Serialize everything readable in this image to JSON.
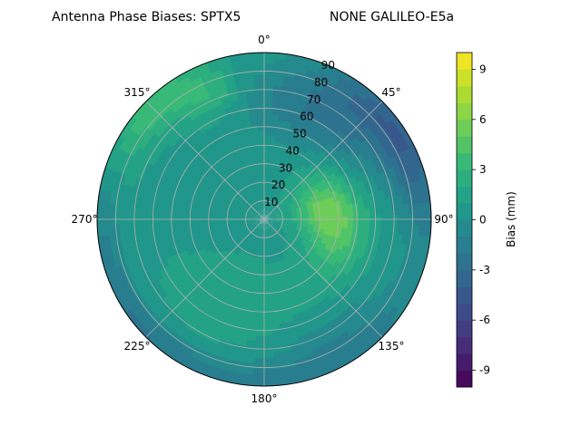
{
  "chart_data": {
    "type": "polar-contour",
    "title_left": "Antenna Phase Biases: SPTX5",
    "title_right": "NONE GALILEO-E5a",
    "colorbar_label": "Bias (mm)",
    "colormap": "viridis",
    "value_range": [
      -10,
      10
    ],
    "levels": [
      -10,
      -9,
      -8,
      -7,
      -6,
      -5,
      -4,
      -3,
      -2,
      -1,
      0,
      1,
      2,
      3,
      4,
      5,
      6,
      7,
      8,
      9,
      10
    ],
    "colorbar_ticks": [
      "-9",
      "-6",
      "-3",
      "0",
      "3",
      "6",
      "9"
    ],
    "colorbar_tick_values": [
      -9,
      -6,
      -3,
      0,
      3,
      6,
      9
    ],
    "azimuth_ticks": [
      "0°",
      "45°",
      "90°",
      "135°",
      "180°",
      "225°",
      "270°",
      "315°"
    ],
    "azimuth_tick_values": [
      0,
      45,
      90,
      135,
      180,
      225,
      270,
      315
    ],
    "radial_ticks": [
      "10",
      "20",
      "30",
      "40",
      "50",
      "60",
      "70",
      "80",
      "90"
    ],
    "radial_tick_values": [
      10,
      20,
      30,
      40,
      50,
      60,
      70,
      80,
      90
    ],
    "radial_range": [
      0,
      90
    ],
    "azimuth_zero": "north",
    "azimuth_direction": "clockwise",
    "grid": true,
    "base_bias": 0.8,
    "features": [
      {
        "azimuth": 95,
        "zenith": 40,
        "bias": 4.0,
        "az_width": 38,
        "zen_width": 16
      },
      {
        "azimuth": 75,
        "zenith": 28,
        "bias": 2.5,
        "az_width": 30,
        "zen_width": 14
      },
      {
        "azimuth": 30,
        "zenith": 65,
        "bias": -3.0,
        "az_width": 38,
        "zen_width": 22
      },
      {
        "azimuth": 60,
        "zenith": 85,
        "bias": -4.0,
        "az_width": 30,
        "zen_width": 14
      },
      {
        "azimuth": 315,
        "zenith": 85,
        "bias": 3.0,
        "az_width": 25,
        "zen_width": 12
      },
      {
        "azimuth": 335,
        "zenith": 72,
        "bias": 2.0,
        "az_width": 15,
        "zen_width": 12
      },
      {
        "azimuth": 180,
        "zenith": 88,
        "bias": -2.0,
        "az_width": 90,
        "zen_width": 10
      },
      {
        "azimuth": 240,
        "zenith": 88,
        "bias": -1.5,
        "az_width": 40,
        "zen_width": 10
      },
      {
        "azimuth": 150,
        "zenith": 75,
        "bias": -1.5,
        "az_width": 30,
        "zen_width": 15
      },
      {
        "azimuth": 200,
        "zenith": 50,
        "bias": 0.8,
        "az_width": 40,
        "zen_width": 25
      }
    ]
  }
}
